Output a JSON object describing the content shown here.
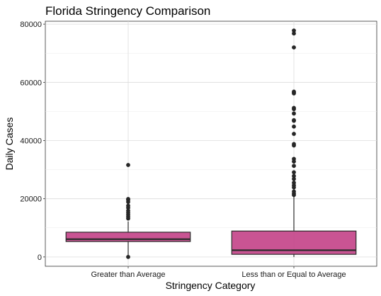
{
  "chart_data": {
    "type": "box",
    "title": "Florida Stringency Comparison",
    "xlabel": "Stringency Category",
    "ylabel": "Daily Cases",
    "ylim": [
      -3200,
      81000
    ],
    "y_ticks": [
      0,
      20000,
      40000,
      60000,
      80000
    ],
    "grid": true,
    "categories": [
      "Greater than Average",
      "Less than or Equal to Average"
    ],
    "boxes": [
      {
        "category": "Greater than Average",
        "q1": 5300,
        "median": 6100,
        "q3": 8500,
        "whisker_low": 0,
        "whisker_high": 12200,
        "outliers": [
          0,
          13200,
          13800,
          14500,
          15200,
          15900,
          16900,
          17600,
          18900,
          19600,
          19900,
          31600
        ]
      },
      {
        "category": "Less than or Equal to Average",
        "q1": 900,
        "median": 2300,
        "q3": 8900,
        "whisker_low": 0,
        "whisker_high": 20900,
        "outliers": [
          21300,
          21800,
          22500,
          23900,
          24600,
          25500,
          26800,
          27800,
          29100,
          31300,
          32800,
          33700,
          38300,
          38800,
          42300,
          44800,
          46800,
          47000,
          49300,
          50800,
          51200,
          56200,
          56500,
          56800,
          72000,
          76800,
          77800
        ]
      }
    ],
    "box_color": "#c4458a",
    "box_stroke": "#2b2b2b",
    "point_color": "#262626"
  }
}
